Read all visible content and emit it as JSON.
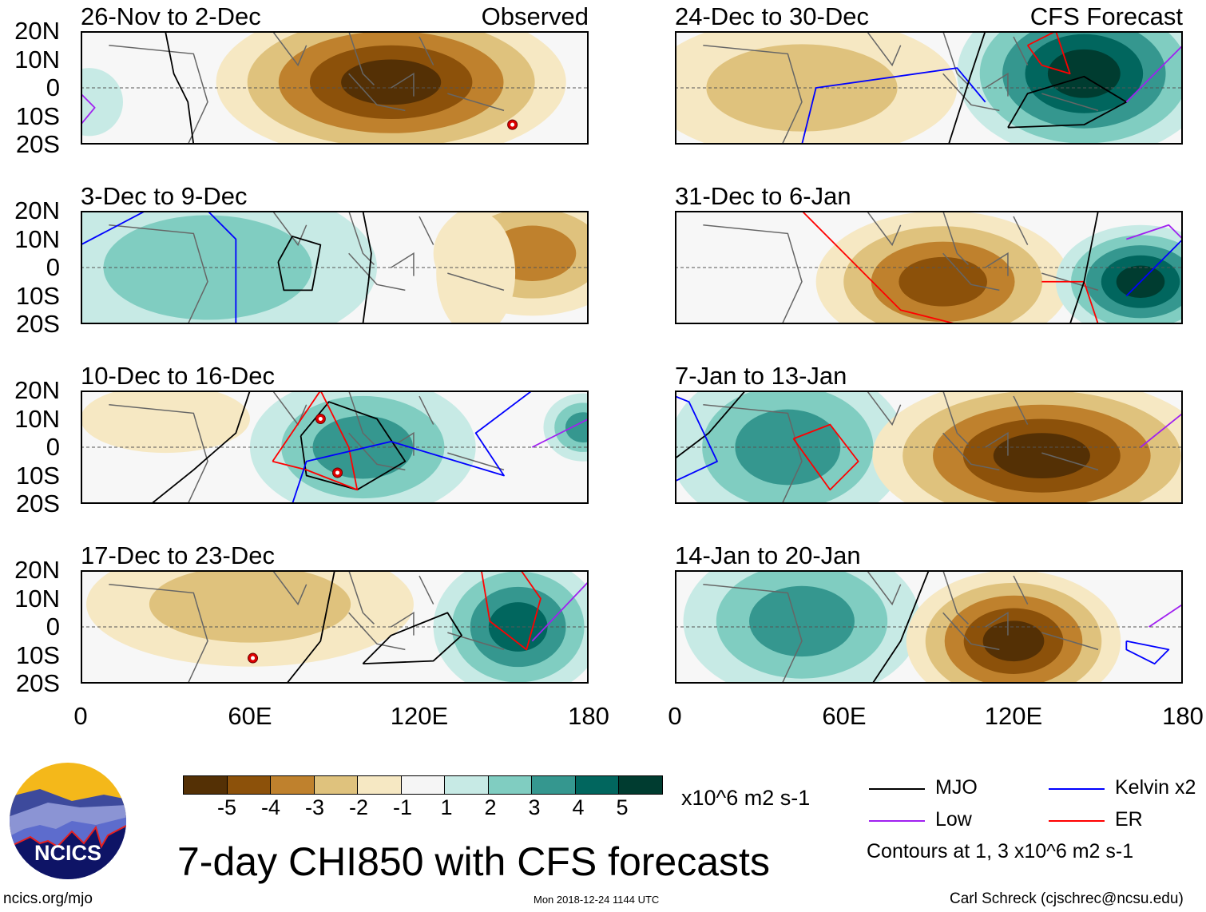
{
  "title": "7-day CHI850 with CFS forecasts",
  "units": "x10^6 m2 s-1",
  "logo_text": "NCICS",
  "url": "ncics.org/mjo",
  "timestamp": "Mon 2018-12-24 1144 UTC",
  "credit": "Carl Schreck (cjschrec@ncsu.edu)",
  "contour_note": "Contours at 1, 3 x10^6 m2 s-1",
  "yticks": [
    "20N",
    "10N",
    "0",
    "10S",
    "20S"
  ],
  "xticks": [
    "0",
    "60E",
    "120E",
    "180"
  ],
  "colorbar": {
    "colors": [
      "#543005",
      "#8c510a",
      "#bf812d",
      "#dfc27d",
      "#f6e8c3",
      "#f5f5f5",
      "#c7eae5",
      "#80cdc1",
      "#35978f",
      "#01665e",
      "#003c30"
    ],
    "labels": [
      "-5",
      "-4",
      "-3",
      "-2",
      "-1",
      "1",
      "2",
      "3",
      "4",
      "5"
    ]
  },
  "legend": [
    {
      "label": "MJO",
      "color": "#000000"
    },
    {
      "label": "Kelvin x2",
      "color": "#0000ff"
    },
    {
      "label": "Low",
      "color": "#a020f0"
    },
    {
      "label": "ER",
      "color": "#ff0000"
    }
  ],
  "panels": [
    {
      "title": "26-Nov to 2-Dec",
      "tag": "Observed",
      "blobs": [
        {
          "lon": 110,
          "lat": 2,
          "rlon": 62,
          "rlat": 28,
          "level": -5
        },
        {
          "lon": 3,
          "lat": -5,
          "rlon": 12,
          "rlat": 12,
          "level": 1
        }
      ],
      "contours": [
        {
          "type": "MJO",
          "pts": [
            [
              30,
              20
            ],
            [
              33,
              5
            ],
            [
              38,
              -5
            ],
            [
              40,
              -20
            ]
          ]
        },
        {
          "type": "Low",
          "pts": [
            [
              0,
              -2
            ],
            [
              5,
              -7
            ],
            [
              0,
              -13
            ]
          ]
        }
      ],
      "cyclones": [
        {
          "lon": 153,
          "lat": -13,
          "id": "O"
        }
      ]
    },
    {
      "title": "3-Dec to 9-Dec",
      "tag": "",
      "blobs": [
        {
          "lon": 45,
          "lat": 0,
          "rlon": 60,
          "rlat": 30,
          "level": 2
        },
        {
          "lon": 160,
          "lat": 5,
          "rlon": 35,
          "rlat": 22,
          "level": -3
        },
        {
          "lon": 140,
          "lat": -2,
          "rlon": 14,
          "rlat": 22,
          "level": -1
        }
      ],
      "contours": [
        {
          "type": "MJO",
          "pts": [
            [
              70,
              2
            ],
            [
              75,
              11
            ],
            [
              85,
              8
            ],
            [
              82,
              -8
            ],
            [
              72,
              -8
            ],
            [
              70,
              2
            ]
          ]
        },
        {
          "type": "MJO",
          "pts": [
            [
              100,
              20
            ],
            [
              103,
              5
            ],
            [
              102,
              -5
            ],
            [
              100,
              -20
            ]
          ]
        },
        {
          "type": "Kelvin",
          "pts": [
            [
              45,
              20
            ],
            [
              55,
              10
            ],
            [
              55,
              0
            ],
            [
              55,
              -20
            ]
          ]
        },
        {
          "type": "Kelvin",
          "pts": [
            [
              0,
              8
            ],
            [
              23,
              20
            ]
          ]
        }
      ],
      "cyclones": []
    },
    {
      "title": "10-Dec to 16-Dec",
      "tag": "",
      "blobs": [
        {
          "lon": 100,
          "lat": 0,
          "rlon": 40,
          "rlat": 25,
          "level": 3
        },
        {
          "lon": 30,
          "lat": 10,
          "rlon": 30,
          "rlat": 12,
          "level": -1
        },
        {
          "lon": 178,
          "lat": 7,
          "rlon": 14,
          "rlat": 12,
          "level": 3
        }
      ],
      "contours": [
        {
          "type": "MJO",
          "pts": [
            [
              78,
              4
            ],
            [
              88,
              16
            ],
            [
              105,
              10
            ],
            [
              115,
              -5
            ],
            [
              98,
              -15
            ],
            [
              80,
              -10
            ],
            [
              78,
              4
            ]
          ]
        },
        {
          "type": "ER",
          "pts": [
            [
              68,
              -5
            ],
            [
              85,
              20
            ],
            [
              95,
              0
            ],
            [
              98,
              -15
            ],
            [
              80,
              -8
            ],
            [
              68,
              -5
            ]
          ]
        },
        {
          "type": "Kelvin",
          "pts": [
            [
              75,
              -20
            ],
            [
              80,
              -5
            ],
            [
              110,
              2
            ],
            [
              150,
              -10
            ],
            [
              140,
              5
            ],
            [
              160,
              20
            ]
          ]
        },
        {
          "type": "MJO",
          "pts": [
            [
              25,
              -20
            ],
            [
              40,
              -8
            ],
            [
              55,
              5
            ],
            [
              60,
              20
            ]
          ]
        },
        {
          "type": "Low",
          "pts": [
            [
              160,
              0
            ],
            [
              180,
              10
            ]
          ]
        }
      ],
      "cyclones": [
        {
          "lon": 85,
          "lat": 10,
          "id": "B"
        },
        {
          "lon": 91,
          "lat": -9,
          "id": "K"
        }
      ]
    },
    {
      "title": "17-Dec to 23-Dec",
      "tag": "",
      "blobs": [
        {
          "lon": 60,
          "lat": 8,
          "rlon": 58,
          "rlat": 22,
          "level": -2
        },
        {
          "lon": 155,
          "lat": 0,
          "rlon": 30,
          "rlat": 25,
          "level": 4
        }
      ],
      "contours": [
        {
          "type": "MJO",
          "pts": [
            [
              100,
              -13
            ],
            [
              110,
              -3
            ],
            [
              130,
              5
            ],
            [
              135,
              -3
            ],
            [
              125,
              -12
            ],
            [
              100,
              -13
            ]
          ]
        },
        {
          "type": "MJO",
          "pts": [
            [
              73,
              -20
            ],
            [
              85,
              -5
            ],
            [
              90,
              20
            ]
          ]
        },
        {
          "type": "ER",
          "pts": [
            [
              142,
              20
            ],
            [
              145,
              2
            ],
            [
              158,
              -8
            ],
            [
              163,
              10
            ],
            [
              156,
              20
            ]
          ]
        },
        {
          "type": "Low",
          "pts": [
            [
              160,
              -5
            ],
            [
              180,
              16
            ]
          ]
        }
      ],
      "cyclones": [
        {
          "lon": 61,
          "lat": -11,
          "id": "O"
        }
      ]
    },
    {
      "title": "24-Dec to 30-Dec",
      "tag": "CFS Forecast",
      "blobs": [
        {
          "lon": 45,
          "lat": 0,
          "rlon": 55,
          "rlat": 25,
          "level": -2
        },
        {
          "lon": 145,
          "lat": 5,
          "rlon": 45,
          "rlat": 30,
          "level": 5
        }
      ],
      "contours": [
        {
          "type": "MJO",
          "pts": [
            [
              118,
              -14
            ],
            [
              125,
              -2
            ],
            [
              145,
              4
            ],
            [
              160,
              -5
            ],
            [
              145,
              -13
            ],
            [
              118,
              -14
            ]
          ]
        },
        {
          "type": "Kelvin",
          "pts": [
            [
              45,
              -20
            ],
            [
              50,
              0
            ],
            [
              100,
              7
            ],
            [
              110,
              -5
            ]
          ]
        },
        {
          "type": "ER",
          "pts": [
            [
              125,
              15
            ],
            [
              135,
              20
            ],
            [
              140,
              5
            ],
            [
              130,
              8
            ],
            [
              125,
              15
            ]
          ]
        },
        {
          "type": "Low",
          "pts": [
            [
              160,
              -5
            ],
            [
              180,
              15
            ]
          ]
        },
        {
          "type": "MJO",
          "pts": [
            [
              97,
              -20
            ],
            [
              105,
              5
            ],
            [
              110,
              20
            ]
          ]
        }
      ],
      "cyclones": []
    },
    {
      "title": "31-Dec to 6-Jan",
      "tag": "",
      "blobs": [
        {
          "lon": 95,
          "lat": -5,
          "rlon": 45,
          "rlat": 25,
          "level": -4
        },
        {
          "lon": 165,
          "lat": -5,
          "rlon": 30,
          "rlat": 20,
          "level": 5
        }
      ],
      "contours": [
        {
          "type": "ER",
          "pts": [
            [
              45,
              20
            ],
            [
              60,
              5
            ],
            [
              80,
              -15
            ],
            [
              100,
              -20
            ]
          ]
        },
        {
          "type": "ER",
          "pts": [
            [
              130,
              -5
            ],
            [
              145,
              -5
            ],
            [
              150,
              -20
            ]
          ]
        },
        {
          "type": "MJO",
          "pts": [
            [
              140,
              -20
            ],
            [
              145,
              -5
            ],
            [
              150,
              20
            ]
          ]
        },
        {
          "type": "Kelvin",
          "pts": [
            [
              160,
              -10
            ],
            [
              175,
              5
            ],
            [
              180,
              10
            ]
          ]
        },
        {
          "type": "Low",
          "pts": [
            [
              160,
              10
            ],
            [
              175,
              15
            ],
            [
              180,
              10
            ]
          ]
        }
      ],
      "cyclones": []
    },
    {
      "title": "7-Jan to 13-Jan",
      "tag": "",
      "blobs": [
        {
          "lon": 40,
          "lat": 0,
          "rlon": 42,
          "rlat": 30,
          "level": 3
        },
        {
          "lon": 130,
          "lat": -3,
          "rlon": 60,
          "rlat": 28,
          "level": -5
        }
      ],
      "contours": [
        {
          "type": "ER",
          "pts": [
            [
              42,
              3
            ],
            [
              55,
              8
            ],
            [
              65,
              -5
            ],
            [
              55,
              -15
            ],
            [
              42,
              3
            ]
          ]
        },
        {
          "type": "MJO",
          "pts": [
            [
              0,
              -4
            ],
            [
              12,
              5
            ],
            [
              25,
              20
            ]
          ]
        },
        {
          "type": "Kelvin",
          "pts": [
            [
              0,
              -12
            ],
            [
              15,
              -5
            ],
            [
              5,
              16
            ],
            [
              0,
              18
            ]
          ]
        },
        {
          "type": "Low",
          "pts": [
            [
              165,
              0
            ],
            [
              180,
              12
            ]
          ]
        }
      ],
      "cyclones": []
    },
    {
      "title": "14-Jan to 20-Jan",
      "tag": "",
      "blobs": [
        {
          "lon": 45,
          "lat": 2,
          "rlon": 42,
          "rlat": 28,
          "level": 3
        },
        {
          "lon": 120,
          "lat": -5,
          "rlon": 38,
          "rlat": 25,
          "level": -5
        }
      ],
      "contours": [
        {
          "type": "MJO",
          "pts": [
            [
              70,
              -20
            ],
            [
              80,
              -5
            ],
            [
              90,
              20
            ]
          ]
        },
        {
          "type": "Kelvin",
          "pts": [
            [
              160,
              -5
            ],
            [
              175,
              -8
            ],
            [
              170,
              -13
            ],
            [
              160,
              -8
            ],
            [
              160,
              -5
            ]
          ]
        },
        {
          "type": "Low",
          "pts": [
            [
              168,
              0
            ],
            [
              180,
              8
            ]
          ]
        }
      ],
      "cyclones": []
    }
  ]
}
